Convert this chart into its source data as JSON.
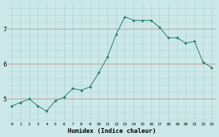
{
  "x": [
    0,
    1,
    2,
    3,
    4,
    5,
    6,
    7,
    8,
    9,
    10,
    11,
    12,
    13,
    14,
    15,
    16,
    17,
    18,
    19,
    20,
    21,
    22,
    23
  ],
  "y": [
    4.8,
    4.9,
    5.0,
    4.8,
    4.65,
    4.95,
    5.05,
    5.3,
    5.25,
    5.35,
    5.75,
    6.2,
    6.85,
    7.35,
    7.25,
    7.25,
    7.25,
    7.05,
    6.75,
    6.75,
    6.6,
    6.65,
    6.05,
    5.9
  ],
  "xlabel": "Humidex (Indice chaleur)",
  "line_color": "#2a7f6f",
  "marker_color": "#2a7f6f",
  "bg_color": "#cce8e8",
  "ylim": [
    4.35,
    7.75
  ],
  "xlim": [
    -0.5,
    23.5
  ],
  "yticks": [
    5,
    6,
    7
  ],
  "xticks": [
    0,
    1,
    2,
    3,
    4,
    5,
    6,
    7,
    8,
    9,
    10,
    11,
    12,
    13,
    14,
    15,
    16,
    17,
    18,
    19,
    20,
    21,
    22,
    23
  ],
  "xtick_labels": [
    "0",
    "1",
    "2",
    "3",
    "4",
    "5",
    "6",
    "7",
    "8",
    "9",
    "10",
    "11",
    "12",
    "13",
    "14",
    "15",
    "16",
    "17",
    "18",
    "19",
    "20",
    "21",
    "22",
    "23"
  ],
  "hgrid_color": "#c0a0a0",
  "vgrid_color": "#a8d0d0",
  "minor_hgrid_color": "#b8d8d8"
}
